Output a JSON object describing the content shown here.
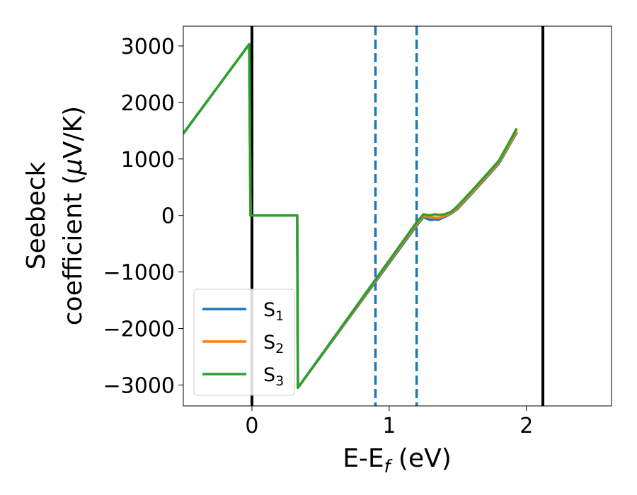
{
  "chart_data": {
    "type": "line",
    "xlabel": {
      "main": "E-E",
      "sub": "f",
      "tail": " (eV)"
    },
    "ylabel": {
      "line1": "Seebeck",
      "line2_pre": "coefficient  (",
      "line2_mu": "μ",
      "line2_post": "V/K)"
    },
    "xlim": [
      -0.5,
      2.62
    ],
    "ylim": [
      -3370,
      3350
    ],
    "xticks": [
      {
        "value": 0,
        "label": "0"
      },
      {
        "value": 1,
        "label": "1"
      },
      {
        "value": 2,
        "label": "2"
      }
    ],
    "yticks": [
      {
        "value": 3000,
        "label": "3000"
      },
      {
        "value": 2000,
        "label": "2000"
      },
      {
        "value": 1000,
        "label": "1000"
      },
      {
        "value": 0,
        "label": "0"
      },
      {
        "value": -1000,
        "label": "−1000"
      },
      {
        "value": -2000,
        "label": "−2000"
      },
      {
        "value": -3000,
        "label": "−3000"
      }
    ],
    "vlines": [
      {
        "x": 0,
        "style": "solid",
        "color": "#000000"
      },
      {
        "x": 0.9,
        "style": "dashed",
        "color": "#1f77b4"
      },
      {
        "x": 1.2,
        "style": "dashed",
        "color": "#1f77b4"
      },
      {
        "x": 2.12,
        "style": "solid",
        "color": "#000000"
      }
    ],
    "series": [
      {
        "name": "S",
        "sub": "1",
        "color": "#1f77b4",
        "points": [
          [
            -0.5,
            1450
          ],
          [
            -0.02,
            3030
          ],
          [
            -0.01,
            0
          ],
          [
            0.33,
            0
          ],
          [
            0.335,
            -3050
          ],
          [
            1.2,
            -180
          ],
          [
            1.25,
            -30
          ],
          [
            1.3,
            -80
          ],
          [
            1.33,
            -70
          ],
          [
            1.36,
            -75
          ],
          [
            1.4,
            -30
          ],
          [
            1.45,
            30
          ],
          [
            1.5,
            120
          ],
          [
            1.6,
            380
          ],
          [
            1.7,
            650
          ],
          [
            1.8,
            920
          ],
          [
            1.93,
            1470
          ]
        ]
      },
      {
        "name": "S",
        "sub": "2",
        "color": "#ff7f0e",
        "points": [
          [
            -0.5,
            1450
          ],
          [
            -0.02,
            3030
          ],
          [
            -0.01,
            0
          ],
          [
            0.33,
            0
          ],
          [
            0.335,
            -3050
          ],
          [
            1.2,
            -150
          ],
          [
            1.25,
            -10
          ],
          [
            1.3,
            -30
          ],
          [
            1.33,
            -40
          ],
          [
            1.36,
            -45
          ],
          [
            1.4,
            -10
          ],
          [
            1.45,
            40
          ],
          [
            1.5,
            140
          ],
          [
            1.6,
            400
          ],
          [
            1.7,
            670
          ],
          [
            1.8,
            940
          ],
          [
            1.93,
            1490
          ]
        ]
      },
      {
        "name": "S",
        "sub": "3",
        "color": "#2ca02c",
        "points": [
          [
            -0.5,
            1450
          ],
          [
            -0.02,
            3030
          ],
          [
            -0.01,
            0
          ],
          [
            0.33,
            0
          ],
          [
            0.335,
            -3050
          ],
          [
            1.2,
            -120
          ],
          [
            1.25,
            20
          ],
          [
            1.3,
            0
          ],
          [
            1.33,
            20
          ],
          [
            1.36,
            10
          ],
          [
            1.4,
            20
          ],
          [
            1.45,
            60
          ],
          [
            1.5,
            170
          ],
          [
            1.6,
            430
          ],
          [
            1.7,
            700
          ],
          [
            1.8,
            970
          ],
          [
            1.93,
            1540
          ]
        ]
      }
    ],
    "legend": {
      "placement": "lower-left"
    }
  }
}
